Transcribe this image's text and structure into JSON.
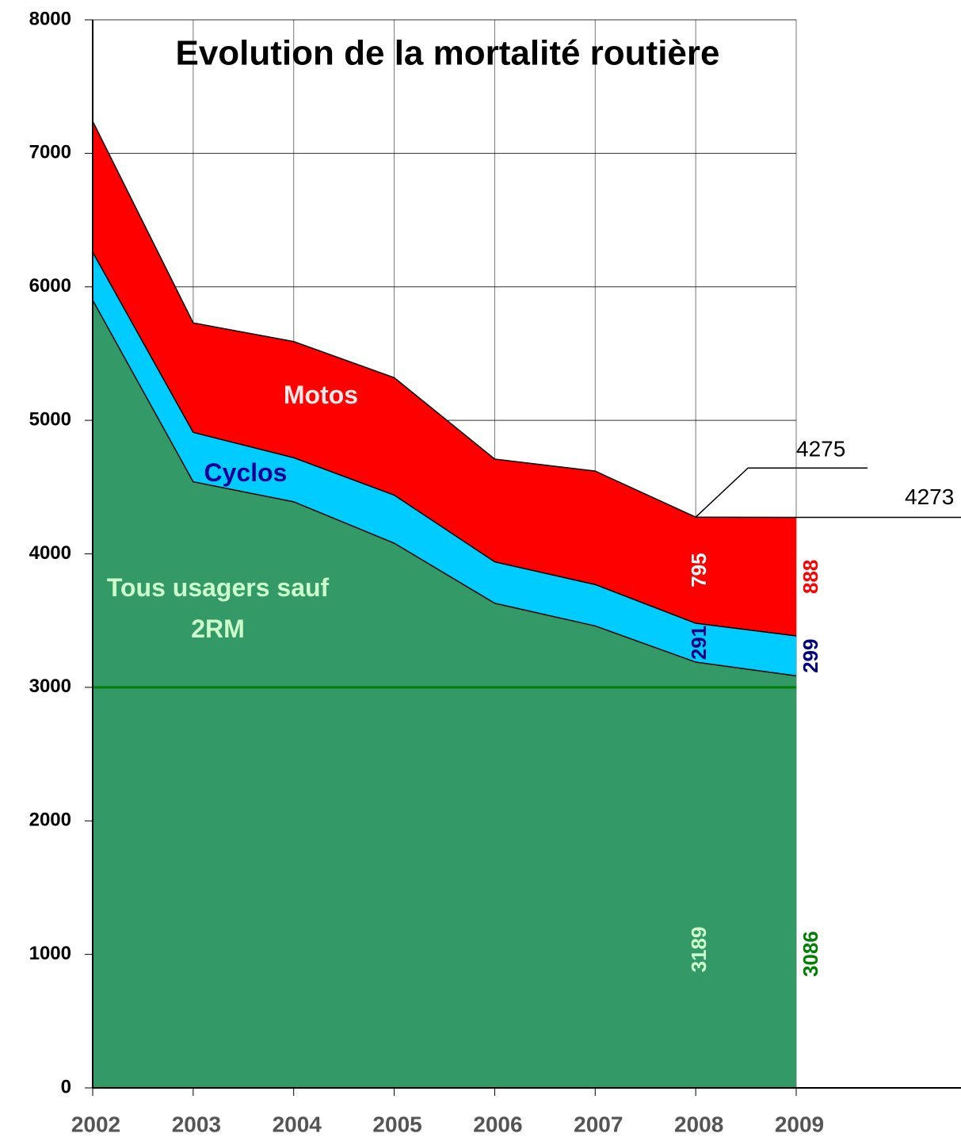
{
  "chart_data": {
    "type": "stacked_area",
    "title": "Evolution de la mortalité routière",
    "categories": [
      "2002",
      "2003",
      "2004",
      "2005",
      "2006",
      "2007",
      "2008",
      "2009"
    ],
    "series": [
      {
        "name": "Tous usagers sauf 2RM",
        "color": "#339966",
        "label_colors": [
          "#ccffcc",
          "#008000"
        ],
        "values": [
          5900,
          4540,
          4390,
          4080,
          3630,
          3460,
          3189,
          3086
        ]
      },
      {
        "name": "Cyclos",
        "color": "#00ccff",
        "label_colors": [
          "#000080",
          "#000080"
        ],
        "values": [
          360,
          370,
          330,
          360,
          310,
          310,
          291,
          299
        ]
      },
      {
        "name": "Motos",
        "color": "#ff0000",
        "label_colors": [
          "#ffffff",
          "#ff0000"
        ],
        "values": [
          980,
          820,
          870,
          880,
          770,
          850,
          795,
          888
        ]
      }
    ],
    "annotations": [
      "4275",
      "4273"
    ],
    "reference_line": {
      "value": 3000,
      "color": "#008000"
    },
    "ylim": [
      0,
      8000
    ],
    "yticks": [
      0,
      1000,
      2000,
      3000,
      4000,
      5000,
      6000,
      7000,
      8000
    ],
    "grid": true
  }
}
